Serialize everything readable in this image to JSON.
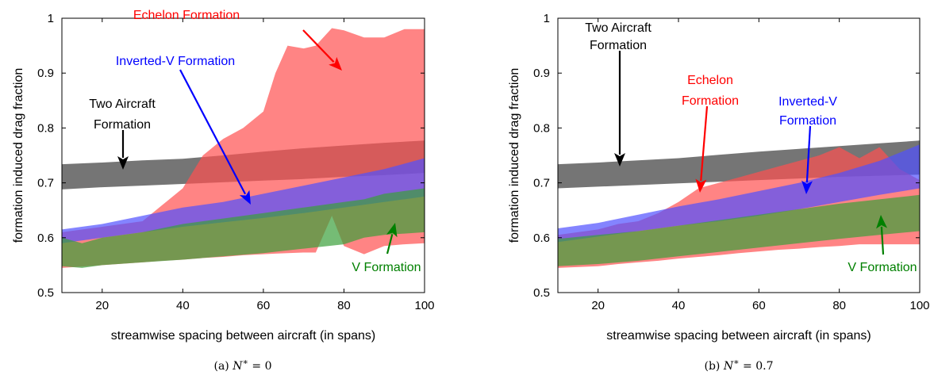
{
  "chart_data": [
    {
      "type": "area",
      "title": "",
      "caption": "(a) N* = 0",
      "xlabel": "streamwise spacing between aircraft (in spans)",
      "ylabel": "formation induced drag fraction",
      "xlim": [
        10,
        100
      ],
      "ylim": [
        0.5,
        1.0
      ],
      "xticks": [
        20,
        40,
        60,
        80,
        100
      ],
      "yticks": [
        0.5,
        0.6,
        0.7,
        0.8,
        0.9,
        1
      ],
      "ytick_labels": [
        "0.5",
        "0.6",
        "0.7",
        "0.8",
        "0.9",
        "1"
      ],
      "grid": false,
      "series": [
        {
          "name": "Two Aircraft Formation",
          "color": "#3a3a3a",
          "x": [
            10,
            20,
            30,
            40,
            50,
            60,
            70,
            80,
            90,
            100
          ],
          "lower": [
            0.688,
            0.692,
            0.695,
            0.698,
            0.701,
            0.704,
            0.707,
            0.711,
            0.714,
            0.718
          ],
          "upper": [
            0.734,
            0.737,
            0.741,
            0.744,
            0.75,
            0.757,
            0.763,
            0.768,
            0.773,
            0.777
          ]
        },
        {
          "name": "Echelon Formation",
          "color": "#ff5050",
          "x": [
            10,
            20,
            30,
            35,
            40,
            45,
            50,
            55,
            60,
            63,
            66,
            70,
            73,
            77,
            80,
            85,
            90,
            95,
            100
          ],
          "lower": [
            0.545,
            0.55,
            0.555,
            0.558,
            0.56,
            0.563,
            0.565,
            0.568,
            0.57,
            0.571,
            0.572,
            0.573,
            0.573,
            0.64,
            0.585,
            0.57,
            0.585,
            0.588,
            0.59
          ],
          "upper": [
            0.61,
            0.62,
            0.63,
            0.66,
            0.69,
            0.75,
            0.78,
            0.8,
            0.83,
            0.9,
            0.95,
            0.945,
            0.95,
            0.982,
            0.978,
            0.965,
            0.965,
            0.98,
            0.98
          ]
        },
        {
          "name": "Inverted-V Formation",
          "color": "#5050ff",
          "x": [
            10,
            20,
            30,
            40,
            50,
            60,
            70,
            80,
            90,
            100
          ],
          "lower": [
            0.59,
            0.6,
            0.61,
            0.62,
            0.628,
            0.636,
            0.645,
            0.655,
            0.665,
            0.675
          ],
          "upper": [
            0.615,
            0.625,
            0.64,
            0.655,
            0.665,
            0.68,
            0.695,
            0.71,
            0.725,
            0.745
          ]
        },
        {
          "name": "V Formation",
          "color": "#3aa03a",
          "x": [
            10,
            15,
            20,
            30,
            40,
            50,
            60,
            70,
            80,
            85,
            90,
            100
          ],
          "lower": [
            0.548,
            0.545,
            0.55,
            0.555,
            0.56,
            0.566,
            0.572,
            0.58,
            0.588,
            0.6,
            0.605,
            0.61
          ],
          "upper": [
            0.6,
            0.59,
            0.6,
            0.61,
            0.625,
            0.635,
            0.645,
            0.655,
            0.665,
            0.67,
            0.68,
            0.69
          ]
        }
      ],
      "annotations": [
        {
          "text": [
            "Echelon Formation"
          ],
          "color": "#ff0000"
        },
        {
          "text": [
            "Inverted-V Formation"
          ],
          "color": "#0000ff"
        },
        {
          "text": [
            "Two Aircraft",
            "Formation"
          ],
          "color": "#000000"
        },
        {
          "text": [
            "V Formation"
          ],
          "color": "#008000"
        }
      ]
    },
    {
      "type": "area",
      "title": "",
      "caption": "(b) N* = 0.7",
      "xlabel": "streamwise spacing between aircraft (in spans)",
      "ylabel": "formation induced drag fraction",
      "xlim": [
        10,
        100
      ],
      "ylim": [
        0.5,
        1.0
      ],
      "xticks": [
        20,
        40,
        60,
        80,
        100
      ],
      "yticks": [
        0.5,
        0.6,
        0.7,
        0.8,
        0.9,
        1
      ],
      "ytick_labels": [
        "0.5",
        "0.6",
        "0.7",
        "0.8",
        "0.9",
        "1"
      ],
      "grid": false,
      "series": [
        {
          "name": "Two Aircraft Formation",
          "color": "#3a3a3a",
          "x": [
            10,
            20,
            30,
            40,
            50,
            60,
            70,
            80,
            90,
            100
          ],
          "lower": [
            0.69,
            0.693,
            0.696,
            0.699,
            0.702,
            0.705,
            0.708,
            0.711,
            0.713,
            0.715
          ],
          "upper": [
            0.734,
            0.737,
            0.741,
            0.745,
            0.751,
            0.757,
            0.762,
            0.767,
            0.772,
            0.777
          ]
        },
        {
          "name": "Echelon Formation",
          "color": "#ff5050",
          "x": [
            10,
            20,
            25,
            30,
            35,
            40,
            45,
            50,
            55,
            60,
            65,
            70,
            75,
            80,
            85,
            90,
            95,
            100
          ],
          "lower": [
            0.545,
            0.548,
            0.552,
            0.555,
            0.558,
            0.562,
            0.565,
            0.568,
            0.572,
            0.575,
            0.578,
            0.58,
            0.583,
            0.585,
            0.588,
            0.588,
            0.588,
            0.588
          ],
          "upper": [
            0.605,
            0.615,
            0.625,
            0.63,
            0.645,
            0.665,
            0.69,
            0.7,
            0.71,
            0.72,
            0.73,
            0.74,
            0.75,
            0.765,
            0.745,
            0.765,
            0.725,
            0.705
          ]
        },
        {
          "name": "Inverted-V Formation",
          "color": "#5050ff",
          "x": [
            10,
            20,
            30,
            40,
            50,
            60,
            70,
            80,
            90,
            100
          ],
          "lower": [
            0.592,
            0.602,
            0.612,
            0.622,
            0.63,
            0.64,
            0.652,
            0.665,
            0.678,
            0.69
          ],
          "upper": [
            0.617,
            0.627,
            0.642,
            0.657,
            0.67,
            0.685,
            0.7,
            0.718,
            0.74,
            0.77
          ]
        },
        {
          "name": "V Formation",
          "color": "#3aa03a",
          "x": [
            10,
            20,
            30,
            40,
            50,
            60,
            70,
            80,
            90,
            100
          ],
          "lower": [
            0.548,
            0.552,
            0.558,
            0.566,
            0.574,
            0.582,
            0.59,
            0.598,
            0.605,
            0.612
          ],
          "upper": [
            0.598,
            0.605,
            0.612,
            0.622,
            0.632,
            0.642,
            0.652,
            0.662,
            0.67,
            0.678
          ]
        }
      ],
      "annotations": [
        {
          "text": [
            "Two Aircraft",
            "Formation"
          ],
          "color": "#000000"
        },
        {
          "text": [
            "Echelon",
            "Formation"
          ],
          "color": "#ff0000"
        },
        {
          "text": [
            "Inverted-V",
            "Formation"
          ],
          "color": "#0000ff"
        },
        {
          "text": [
            "V Formation"
          ],
          "color": "#008000"
        }
      ]
    }
  ]
}
